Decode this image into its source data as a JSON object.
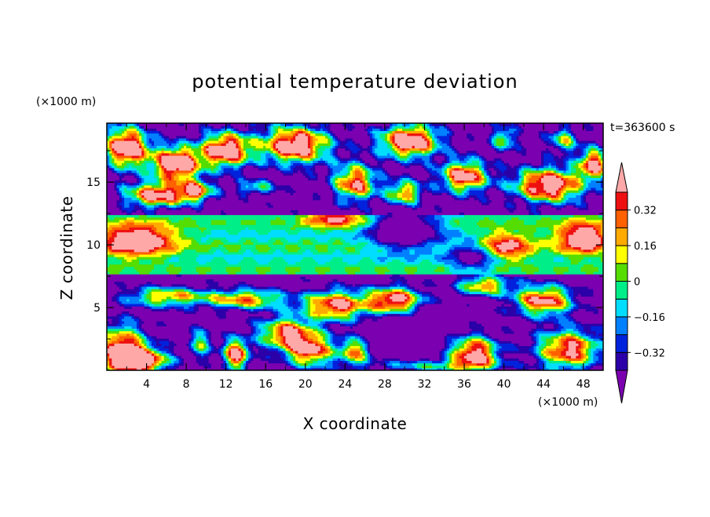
{
  "chart_data": {
    "type": "heatmap",
    "title": "potential temperature deviation",
    "xlabel": "X coordinate",
    "ylabel": "Z coordinate",
    "x_unit": "(×1000 m)",
    "y_unit": "(×1000 m)",
    "time_label": "t=363600 s",
    "xlim": [
      0,
      50
    ],
    "ylim": [
      0,
      19.7
    ],
    "x_ticks": [
      "4",
      "8",
      "12",
      "16",
      "20",
      "24",
      "28",
      "32",
      "36",
      "40",
      "44",
      "48"
    ],
    "x_tick_values": [
      4,
      8,
      12,
      16,
      20,
      24,
      28,
      32,
      36,
      40,
      44,
      48
    ],
    "y_ticks": [
      "5",
      "10",
      "15"
    ],
    "y_tick_values": [
      5,
      10,
      15
    ],
    "colorbar": {
      "levels": [
        -0.4,
        -0.32,
        -0.24,
        -0.16,
        -0.08,
        0,
        0.08,
        0.16,
        0.24,
        0.32,
        0.4
      ],
      "tick_labels": [
        "0.32",
        "0.16",
        "0",
        "−0.16",
        "−0.32"
      ],
      "tick_values": [
        0.32,
        0.16,
        0,
        -0.16,
        -0.32
      ],
      "colors": [
        "#7b00b0",
        "#2b00a8",
        "#0022dd",
        "#0080ff",
        "#00ddff",
        "#00ee88",
        "#55dd00",
        "#ffff00",
        "#ffaa00",
        "#ff6000",
        "#ee1010",
        "#ffa8a8"
      ],
      "extend": "both"
    }
  }
}
